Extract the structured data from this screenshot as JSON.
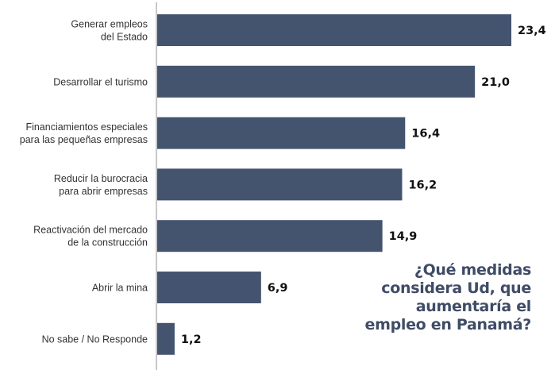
{
  "chart_data": {
    "type": "bar",
    "orientation": "horizontal",
    "title": "¿Qué medidas\nconsidera Ud, que\naumentaría el\nempleo en Panamá?",
    "categories": [
      [
        "Generar empleos",
        "del Estado"
      ],
      [
        "Desarrollar el turismo"
      ],
      [
        "Financiamientos especiales",
        "para las pequeñas empresas"
      ],
      [
        "Reducir la burocracia",
        "para abrir empresas"
      ],
      [
        "Reactivación del mercado",
        "de la construcción"
      ],
      [
        "Abrir la mina"
      ],
      [
        "No sabe / No Responde"
      ]
    ],
    "values": [
      23.4,
      21.0,
      16.4,
      16.2,
      14.9,
      6.9,
      1.2
    ],
    "data_labels": [
      "23,4",
      "21,0",
      "16,4",
      "16,2",
      "14,9",
      "6,9",
      "1,2"
    ],
    "xlim": [
      0,
      23.4
    ],
    "grid": false,
    "legend": "none",
    "colors": {
      "bar": "#44546f",
      "axis": "#c8c8c8",
      "title": "#3f4c66",
      "label": "#333333",
      "value": "#111111"
    }
  }
}
